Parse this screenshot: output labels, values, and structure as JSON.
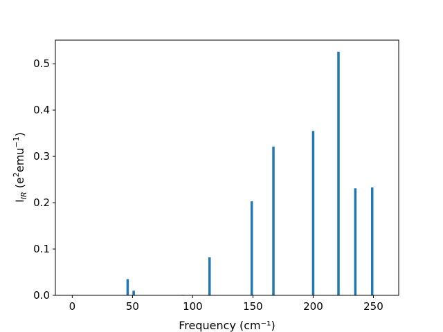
{
  "chart_data": {
    "type": "bar",
    "xlabel": "Frequency (cm⁻¹)",
    "ylabel_parts": {
      "base": "I",
      "sub": "IR",
      "unit_open": " (e",
      "unit_sup": "2",
      "unit_mid": "emu",
      "unit_sup2": "−1",
      "unit_close": ")"
    },
    "xlim": [
      -14,
      271
    ],
    "ylim": [
      0,
      0.551
    ],
    "xticks": [
      0,
      50,
      100,
      150,
      200,
      250
    ],
    "yticks": [
      0.0,
      0.1,
      0.2,
      0.3,
      0.4,
      0.5
    ],
    "xtick_labels": [
      "0",
      "50",
      "100",
      "150",
      "200",
      "250"
    ],
    "ytick_labels": [
      "0.0",
      "0.1",
      "0.2",
      "0.3",
      "0.4",
      "0.5"
    ],
    "bar_color": "#1f77b4",
    "bar_width": 2.0,
    "grid": false,
    "series": [
      {
        "x": [
          46,
          51,
          92,
          114,
          149,
          167,
          200,
          221,
          235,
          249
        ],
        "values": [
          0.035,
          0.01,
          0.001,
          0.082,
          0.203,
          0.321,
          0.355,
          0.526,
          0.231,
          0.233
        ]
      }
    ]
  }
}
